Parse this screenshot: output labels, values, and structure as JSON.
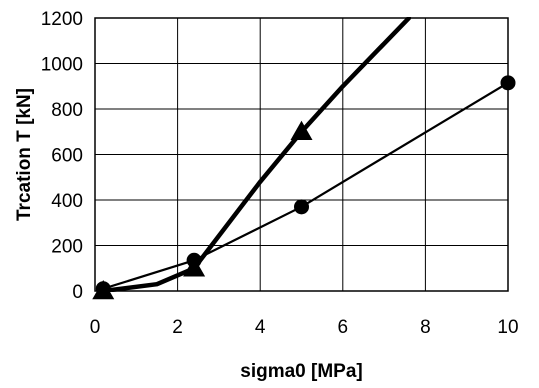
{
  "chart_data": {
    "type": "line",
    "title": "",
    "xlabel": "sigma0 [MPa]",
    "ylabel": "Trcation T [kN]",
    "xlim": [
      0,
      10
    ],
    "ylim": [
      0,
      1200
    ],
    "xticks": [
      0,
      2,
      4,
      6,
      8,
      10
    ],
    "yticks": [
      0,
      200,
      400,
      600,
      800,
      1000,
      1200
    ],
    "grid": true,
    "legend": "none",
    "series": [
      {
        "marker": "triangle",
        "line_width": "thick",
        "color": "#000000",
        "x": [
          0.2,
          1.5,
          2.4,
          4.0,
          5.0,
          6.0,
          7.6
        ],
        "y": [
          0,
          30,
          100,
          480,
          700,
          900,
          1200
        ],
        "marker_points": [
          [
            0.2,
            0
          ],
          [
            2.4,
            100
          ],
          [
            5.0,
            700
          ]
        ]
      },
      {
        "marker": "circle",
        "line_width": "thin",
        "color": "#000000",
        "x": [
          0.2,
          2.4,
          5.0,
          10.0
        ],
        "y": [
          10,
          135,
          370,
          915
        ],
        "marker_points": [
          [
            0.2,
            10
          ],
          [
            2.4,
            135
          ],
          [
            5.0,
            370
          ],
          [
            10.0,
            915
          ]
        ]
      }
    ]
  }
}
